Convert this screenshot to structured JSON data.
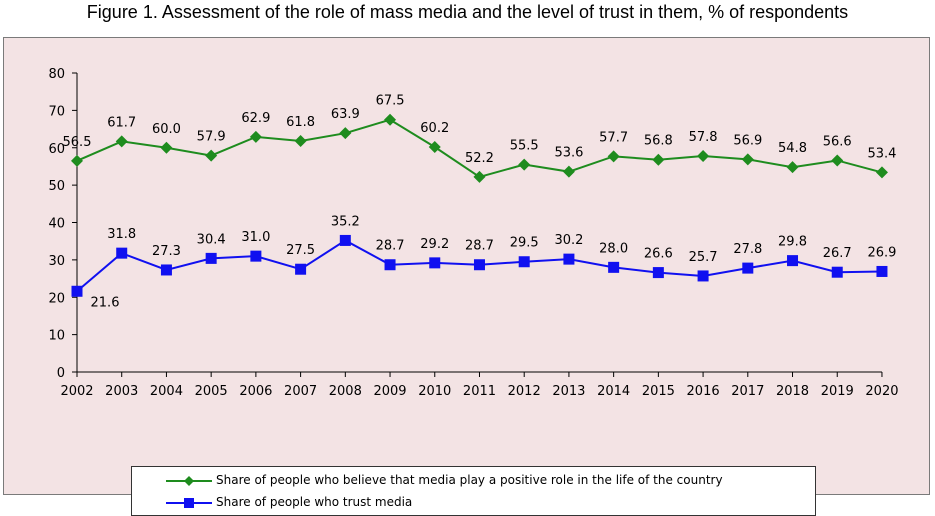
{
  "figure_title": "Figure 1. Assessment of the role of mass media and the level of trust in them, % of respondents",
  "colors": {
    "background": "#f3e3e4",
    "series_positive": "#1e8c1e",
    "series_trust": "#1010f0"
  },
  "chart_data": {
    "type": "line",
    "title": "Figure 1. Assessment of the role of mass media and the level of trust in them, % of respondents",
    "xlabel": "",
    "ylabel": "",
    "ylim": [
      0,
      80
    ],
    "yticks": [
      0,
      10,
      20,
      30,
      40,
      50,
      60,
      70,
      80
    ],
    "grid": false,
    "legend_position": "bottom",
    "categories": [
      "2002",
      "2003",
      "2004",
      "2005",
      "2006",
      "2007",
      "2008",
      "2009",
      "2010",
      "2011",
      "2012",
      "2013",
      "2014",
      "2015",
      "2016",
      "2017",
      "2018",
      "2019",
      "2020"
    ],
    "series": [
      {
        "name": "Share of people who believe that media play a positive role in the life of the country",
        "marker": "diamond",
        "color": "#1e8c1e",
        "values": [
          56.5,
          61.7,
          60.0,
          57.9,
          62.9,
          61.8,
          63.9,
          67.5,
          60.2,
          52.2,
          55.5,
          53.6,
          57.7,
          56.8,
          57.8,
          56.9,
          54.8,
          56.6,
          53.4
        ],
        "labels": [
          "56.5",
          "61.7",
          "60.0",
          "57.9",
          "62.9",
          "61.8",
          "63.9",
          "67.5",
          "60.2",
          "52.2",
          "55.5",
          "53.6",
          "57.7",
          "56.8",
          "57.8",
          "56.9",
          "54.8",
          "56.6",
          "53.4"
        ]
      },
      {
        "name": "Share of people who trust media",
        "marker": "square",
        "color": "#1010f0",
        "values": [
          21.6,
          31.8,
          27.3,
          30.4,
          31.0,
          27.5,
          35.2,
          28.7,
          29.2,
          28.7,
          29.5,
          30.2,
          28.0,
          26.6,
          25.7,
          27.8,
          29.8,
          26.7,
          26.9
        ],
        "labels": [
          "21.6",
          "31.8",
          "27.3",
          "30.4",
          "31.0",
          "27.5",
          "35.2",
          "28.7",
          "29.2",
          "28.7",
          "29.5",
          "30.2",
          "28.0",
          "26.6",
          "25.7",
          "27.8",
          "29.8",
          "26.7",
          "26.9"
        ]
      }
    ]
  }
}
